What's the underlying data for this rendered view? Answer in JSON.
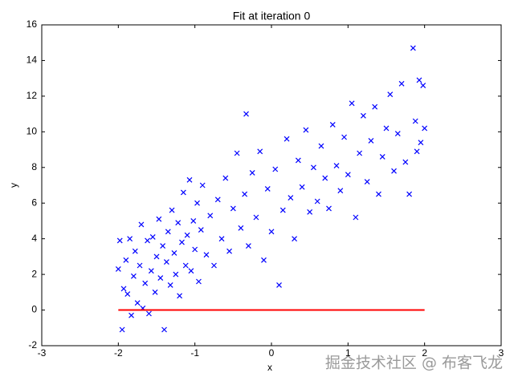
{
  "chart_data": {
    "type": "scatter",
    "title": "Fit at iteration 0",
    "x_label": "x",
    "y_label": "y",
    "xlim": [
      -3,
      3
    ],
    "ylim": [
      -2,
      16
    ],
    "xticks": [
      -3,
      -2,
      -1,
      0,
      1,
      2,
      3
    ],
    "yticks": [
      -2,
      0,
      2,
      4,
      6,
      8,
      10,
      12,
      14,
      16
    ],
    "points": {
      "color": "#0000ff",
      "marker": "x",
      "x": [
        -2.0,
        -1.98,
        -1.95,
        -1.93,
        -1.9,
        -1.88,
        -1.85,
        -1.83,
        -1.8,
        -1.78,
        -1.75,
        -1.72,
        -1.7,
        -1.68,
        -1.65,
        -1.62,
        -1.6,
        -1.57,
        -1.55,
        -1.52,
        -1.5,
        -1.47,
        -1.45,
        -1.42,
        -1.4,
        -1.37,
        -1.35,
        -1.32,
        -1.3,
        -1.27,
        -1.25,
        -1.22,
        -1.2,
        -1.17,
        -1.15,
        -1.12,
        -1.1,
        -1.07,
        -1.05,
        -1.02,
        -1.0,
        -0.97,
        -0.95,
        -0.92,
        -0.9,
        -0.85,
        -0.8,
        -0.75,
        -0.7,
        -0.65,
        -0.6,
        -0.55,
        -0.5,
        -0.45,
        -0.4,
        -0.35,
        -0.33,
        -0.3,
        -0.25,
        -0.2,
        -0.15,
        -0.1,
        -0.05,
        0.0,
        0.05,
        0.1,
        0.15,
        0.2,
        0.25,
        0.3,
        0.35,
        0.4,
        0.45,
        0.5,
        0.55,
        0.6,
        0.65,
        0.7,
        0.75,
        0.8,
        0.85,
        0.9,
        0.95,
        1.0,
        1.05,
        1.1,
        1.15,
        1.2,
        1.25,
        1.3,
        1.35,
        1.4,
        1.45,
        1.5,
        1.55,
        1.6,
        1.65,
        1.7,
        1.75,
        1.8,
        1.85,
        1.88,
        1.9,
        1.93,
        1.95,
        1.98,
        2.0
      ],
      "y": [
        2.3,
        3.9,
        -1.1,
        1.2,
        2.8,
        0.9,
        4.0,
        -0.3,
        1.9,
        3.3,
        0.4,
        2.5,
        4.8,
        0.1,
        1.5,
        3.9,
        -0.2,
        2.2,
        4.1,
        1.0,
        3.0,
        5.1,
        1.8,
        3.6,
        -1.1,
        2.7,
        4.4,
        1.4,
        5.6,
        3.2,
        2.0,
        4.9,
        0.8,
        3.8,
        6.6,
        2.5,
        4.2,
        7.3,
        2.2,
        5.0,
        3.4,
        6.0,
        1.6,
        4.5,
        7.0,
        3.1,
        5.3,
        2.5,
        6.2,
        4.0,
        7.4,
        3.3,
        5.7,
        8.8,
        4.6,
        6.5,
        11.0,
        3.6,
        7.7,
        5.2,
        8.9,
        2.8,
        6.8,
        4.4,
        7.9,
        1.4,
        5.6,
        9.6,
        6.3,
        4.0,
        8.4,
        6.9,
        10.1,
        5.5,
        8.0,
        6.1,
        9.2,
        7.4,
        5.7,
        10.4,
        8.1,
        6.7,
        9.7,
        7.6,
        11.6,
        5.2,
        8.8,
        10.9,
        7.2,
        9.5,
        11.4,
        6.5,
        8.6,
        10.2,
        12.1,
        7.8,
        9.9,
        12.7,
        8.3,
        6.5,
        14.7,
        10.6,
        8.9,
        12.9,
        9.4,
        12.6,
        10.2
      ]
    },
    "fit_line": {
      "color": "#ff0000",
      "x": [
        -2,
        2
      ],
      "y": [
        0,
        0
      ]
    },
    "watermark": "掘金技术社区 @ 布客飞龙"
  }
}
